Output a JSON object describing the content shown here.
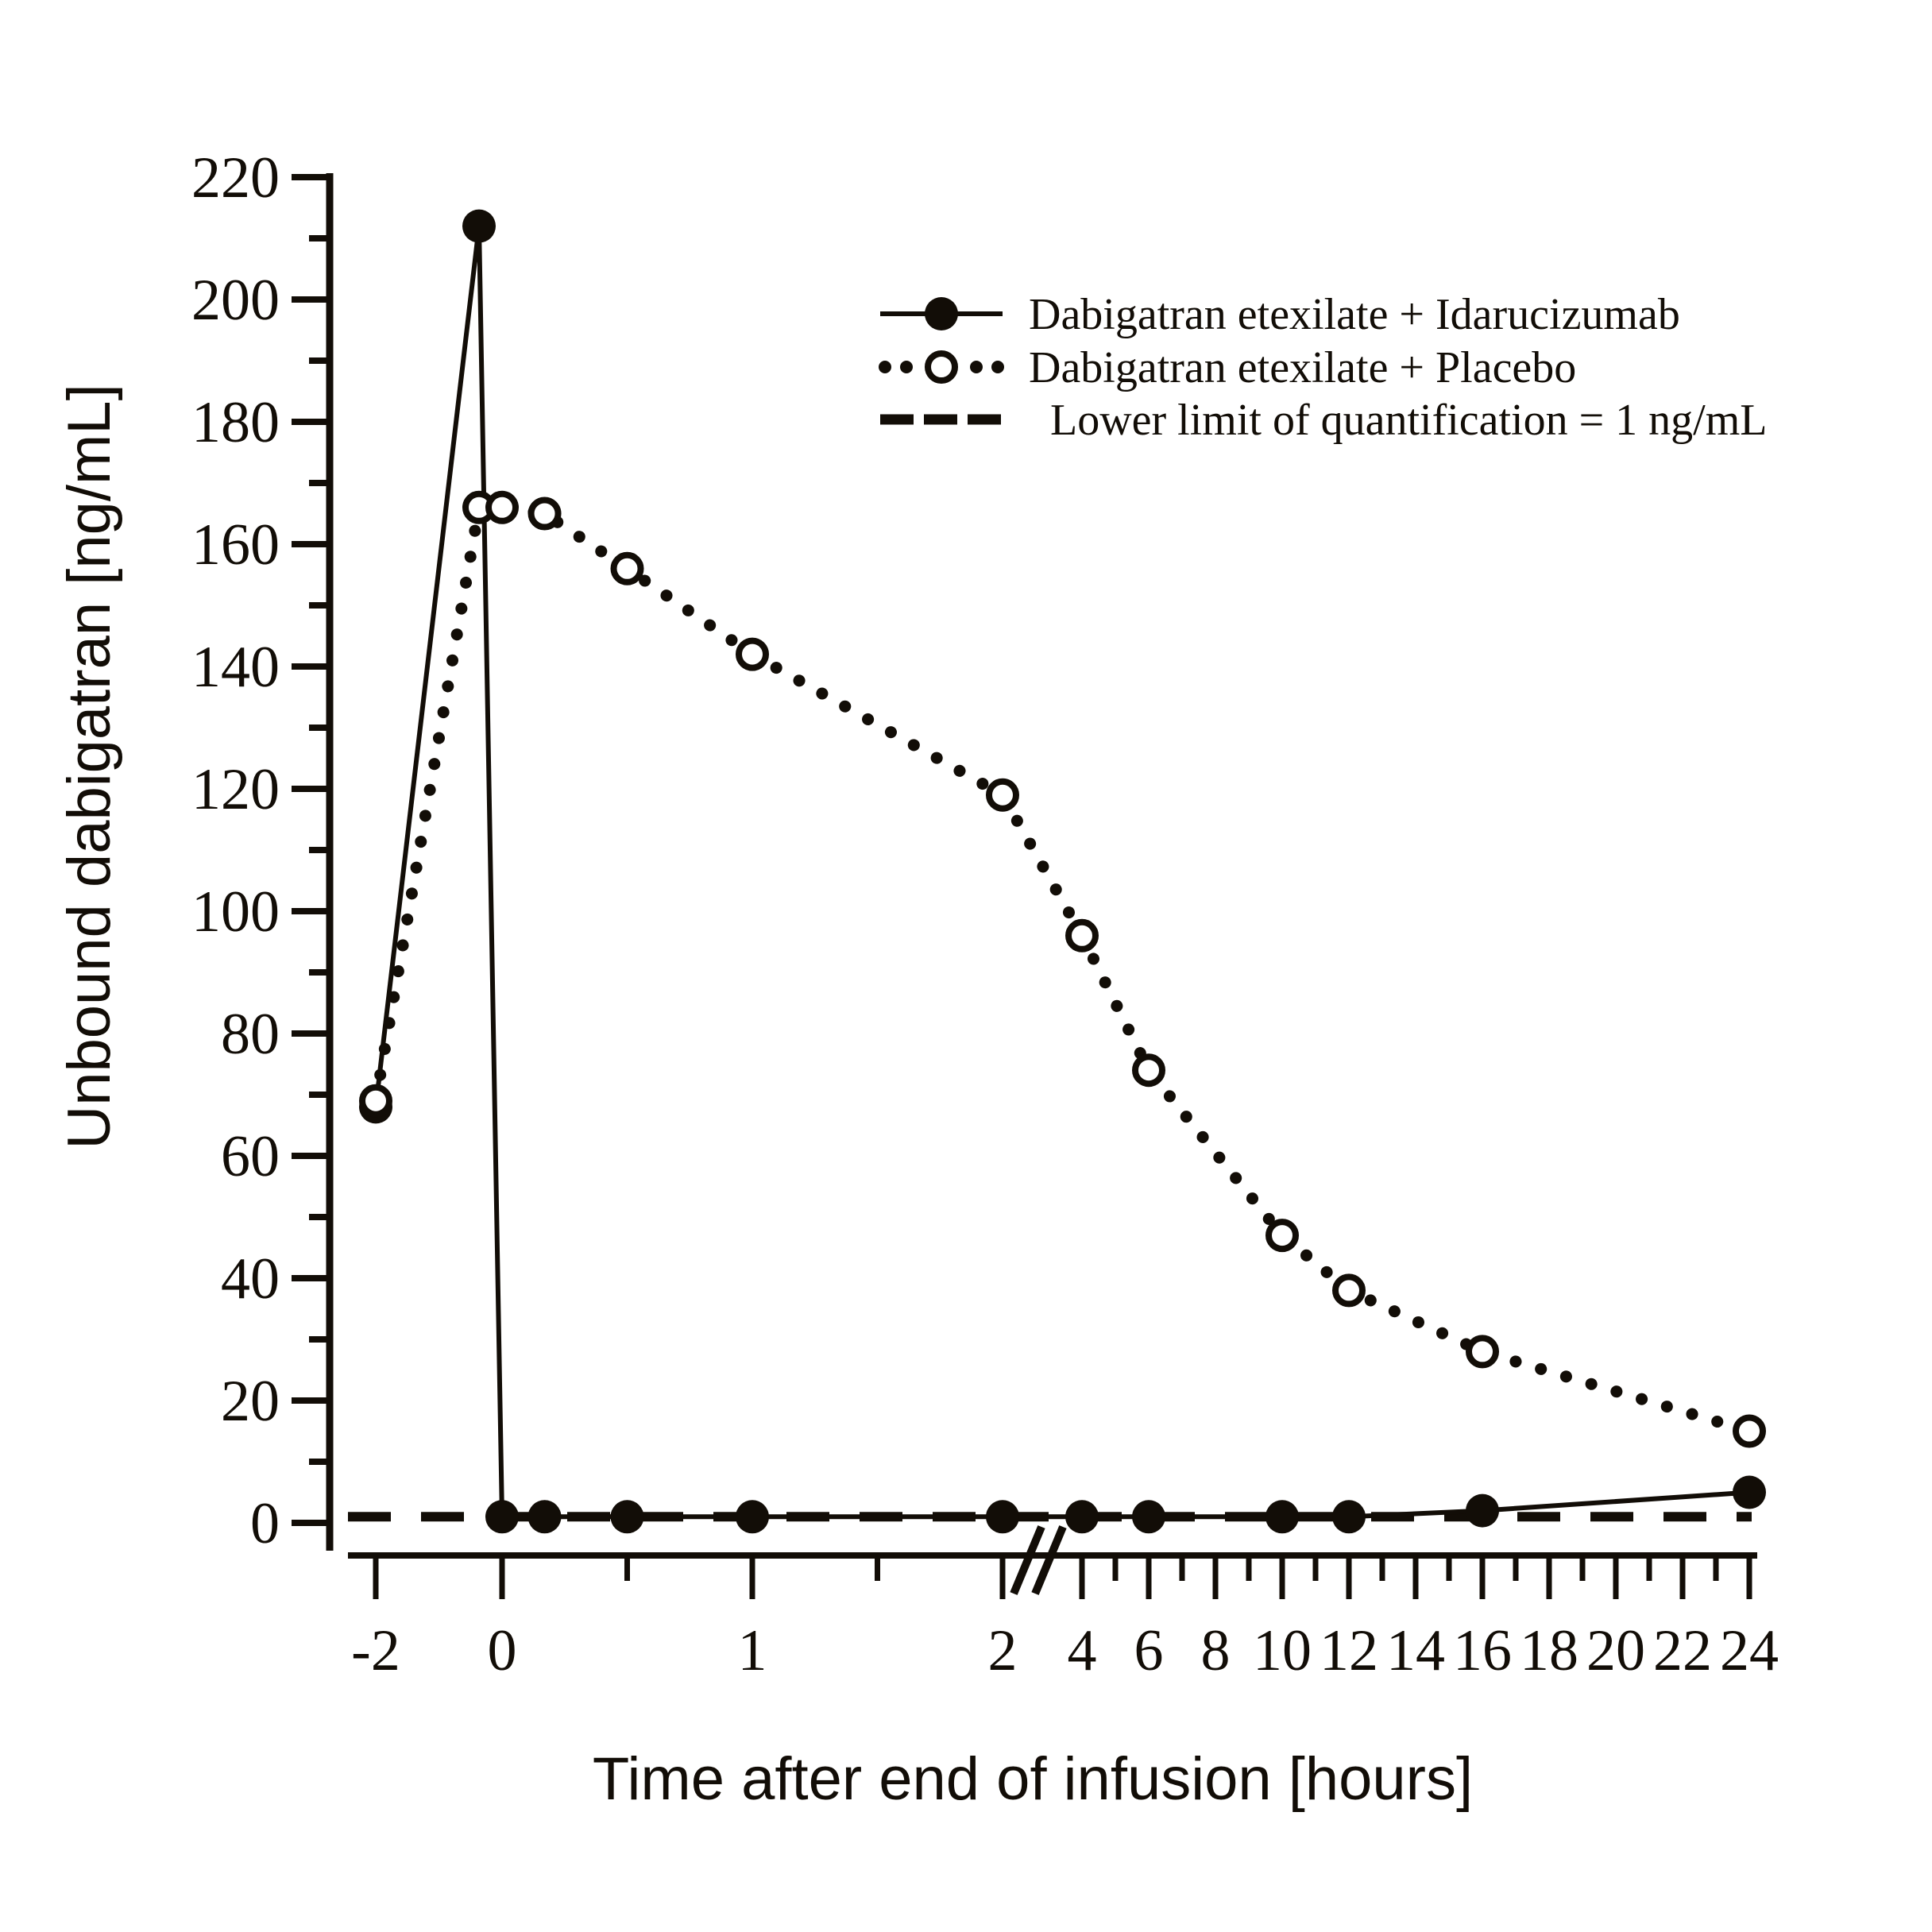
{
  "chart_data": {
    "type": "line",
    "title": "",
    "xlabel": "Time after end of infusion [hours]",
    "ylabel": "Unbound dabigatran [ng/mL]",
    "ylim": [
      0,
      220
    ],
    "grid": "off",
    "y_axis": {
      "major_step": 20,
      "minor_step": 10,
      "major_tick_values": [
        0,
        20,
        40,
        60,
        80,
        100,
        120,
        140,
        160,
        180,
        200,
        220
      ]
    },
    "x_axis": {
      "left_segment": {
        "major_ticks": [
          -2,
          0,
          1,
          2
        ],
        "major_labels": [
          "-2",
          "0",
          "1",
          "2"
        ],
        "minor_ticks": [
          0.5,
          1.5
        ]
      },
      "right_segment": {
        "major_ticks": [
          4,
          6,
          8,
          10,
          12,
          14,
          16,
          18,
          20,
          22,
          24
        ],
        "major_labels": [
          "4",
          "6",
          "8",
          "10",
          "12",
          "14",
          "16",
          "18",
          "20",
          "22",
          "24"
        ],
        "minor_ticks": [
          5,
          7,
          9,
          11,
          13,
          15,
          17,
          19,
          21,
          23
        ]
      },
      "axis_break_between": [
        2,
        4
      ]
    },
    "series": [
      {
        "name": "Dabigatran etexilate + Idarucizumab",
        "marker": "filled-circle",
        "line_style": "solid",
        "x": [
          -2,
          -0.09,
          0,
          0.17,
          0.5,
          1,
          2,
          4,
          6,
          10,
          12,
          16,
          24
        ],
        "y": [
          68,
          212,
          1,
          1,
          1,
          1,
          1,
          1,
          1,
          1,
          1,
          2,
          5
        ]
      },
      {
        "name": "Dabigatran etexilate + Placebo",
        "marker": "open-circle",
        "line_style": "dotted",
        "x": [
          -2,
          -0.09,
          0,
          0.17,
          0.5,
          1,
          2,
          4,
          6,
          10,
          12,
          16,
          24
        ],
        "y": [
          69,
          166,
          166,
          165,
          156,
          142,
          119,
          96,
          74,
          47,
          38,
          28,
          15
        ]
      },
      {
        "name": "Lower limit of quantification = 1 ng/mL",
        "marker": "none",
        "line_style": "dashed",
        "y_constant": 1
      }
    ],
    "legend": {
      "position": "upper-right"
    },
    "colors": {
      "ink": "#120d07",
      "background": "#ffffff"
    }
  }
}
